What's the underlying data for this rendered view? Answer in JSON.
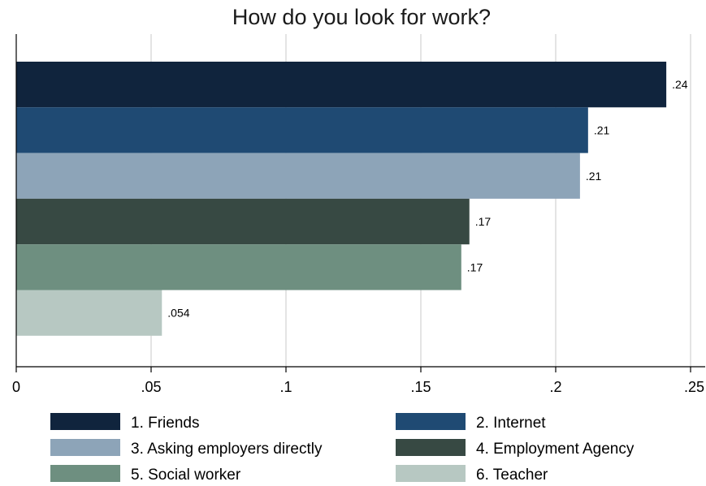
{
  "chart_data": {
    "type": "bar",
    "orientation": "horizontal",
    "title": "How do you look for work?",
    "xlabel": "",
    "ylabel": "",
    "xlim": [
      0,
      0.25
    ],
    "x_ticks": [
      0,
      0.05,
      0.1,
      0.15,
      0.2,
      0.25
    ],
    "x_tick_labels": [
      "0",
      ".05",
      ".1",
      ".15",
      ".2",
      ".25"
    ],
    "grid": true,
    "legend_position": "bottom",
    "series": [
      {
        "name": "1. Friends",
        "value": 0.241,
        "label": ".24",
        "color": "#10243d"
      },
      {
        "name": "2. Internet",
        "value": 0.212,
        "label": ".21",
        "color": "#1f4a73"
      },
      {
        "name": "3. Asking employers directly",
        "value": 0.209,
        "label": ".21",
        "color": "#8da4b8"
      },
      {
        "name": "4. Employment Agency",
        "value": 0.168,
        "label": ".17",
        "color": "#374943"
      },
      {
        "name": "5. Social worker",
        "value": 0.165,
        "label": ".17",
        "color": "#6e8f80"
      },
      {
        "name": "6. Teacher",
        "value": 0.054,
        "label": ".054",
        "color": "#b7c8c2"
      }
    ]
  }
}
